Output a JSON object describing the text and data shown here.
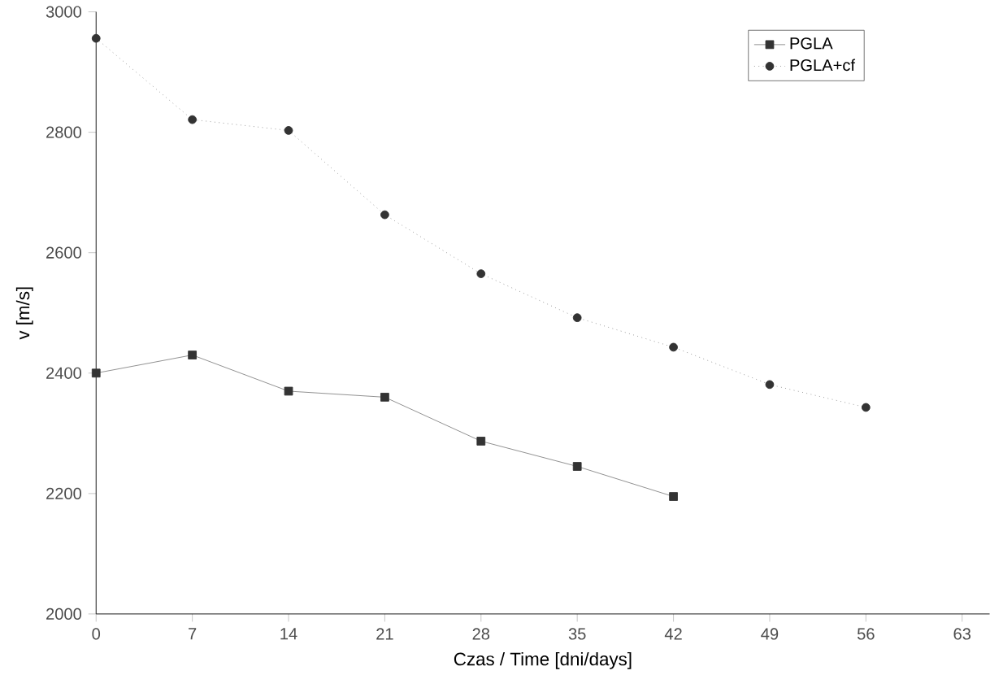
{
  "chart_data": {
    "type": "line",
    "xlabel": "Czas / Time [dni/days]",
    "ylabel": "v [m/s]",
    "x": [
      0,
      7,
      14,
      21,
      28,
      35,
      42,
      49,
      56
    ],
    "series": [
      {
        "name": "PGLA",
        "color": "#333333",
        "marker": "square",
        "line_style": "solid",
        "values": [
          2400,
          2430,
          2370,
          2360,
          2287,
          2245,
          2195,
          null,
          null
        ]
      },
      {
        "name": "PGLA+cf",
        "color": "#333333",
        "marker": "circle",
        "line_style": "dotted",
        "values": [
          2956,
          2821,
          2803,
          2663,
          2565,
          2492,
          2443,
          2381,
          2343
        ]
      }
    ],
    "xlim": [
      0,
      65
    ],
    "ylim": [
      2000,
      3000
    ],
    "xticks": [
      0,
      7,
      14,
      21,
      28,
      35,
      42,
      49,
      56,
      63
    ],
    "yticks": [
      2000,
      2200,
      2400,
      2600,
      2800,
      3000
    ],
    "grid": false,
    "legend": "top right"
  }
}
